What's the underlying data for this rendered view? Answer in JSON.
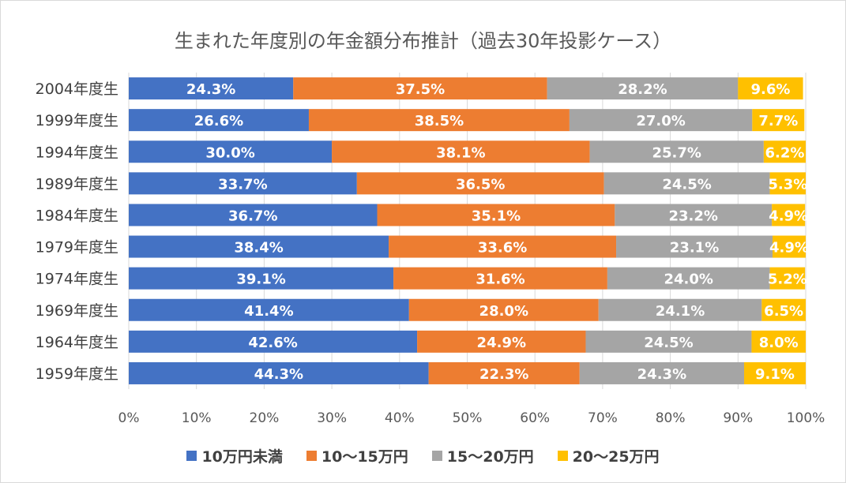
{
  "chart_data": {
    "type": "bar",
    "orientation": "horizontal",
    "stacked": true,
    "title": "生まれた年度別の年金額分布推計（過去30年投影ケース）",
    "categories": [
      "2004年度生",
      "1999年度生",
      "1994年度生",
      "1989年度生",
      "1984年度生",
      "1979年度生",
      "1974年度生",
      "1969年度生",
      "1964年度生",
      "1959年度生"
    ],
    "series": [
      {
        "name": "10万円未満",
        "color": "#4472c4",
        "values": [
          24.3,
          26.6,
          30.0,
          33.7,
          36.7,
          38.4,
          39.1,
          41.4,
          42.6,
          44.3
        ]
      },
      {
        "name": "10～15万円",
        "color": "#ed7d31",
        "values": [
          37.5,
          38.5,
          38.1,
          36.5,
          35.1,
          33.6,
          31.6,
          28.0,
          24.9,
          22.3
        ]
      },
      {
        "name": "15～20万円",
        "color": "#a5a5a5",
        "values": [
          28.2,
          27.0,
          25.7,
          24.5,
          23.2,
          23.1,
          24.0,
          24.1,
          24.5,
          24.3
        ]
      },
      {
        "name": "20～25万円",
        "color": "#ffc000",
        "values": [
          9.6,
          7.7,
          6.2,
          5.3,
          4.9,
          4.9,
          5.2,
          6.5,
          8.0,
          9.1
        ]
      }
    ],
    "xticks": [
      "0%",
      "10%",
      "20%",
      "30%",
      "40%",
      "50%",
      "60%",
      "70%",
      "80%",
      "90%",
      "100%"
    ],
    "xlim": [
      0,
      100
    ],
    "xlabel": "",
    "ylabel": "",
    "legend": "bottom"
  }
}
